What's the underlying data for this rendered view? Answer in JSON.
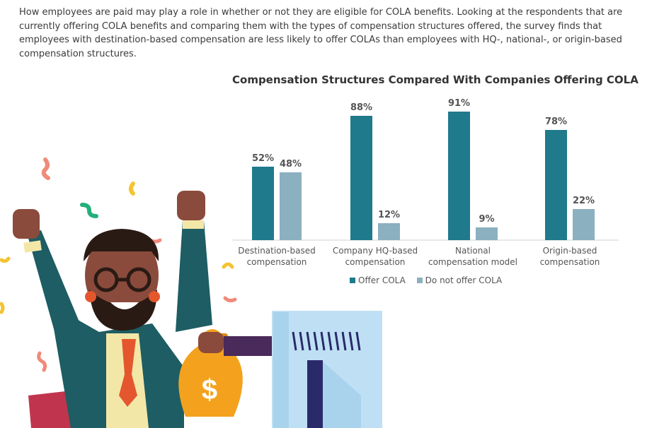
{
  "intro_text": "How employees are paid may play a role in whether or not they are eligible for COLA benefits. Looking at the respondents that are currently offering COLA benefits and comparing them with the types of compensation structures offered, the survey finds that employees with destination-based compensation are less likely to offer COLAs than employees with HQ-, national-, or origin-based compensation structures.",
  "chart_data": {
    "type": "bar",
    "title": "Compensation Structures Compared With Companies Offering COLA",
    "categories": [
      [
        "Destination-based",
        "compensation"
      ],
      [
        "Company HQ-based",
        "compensation"
      ],
      [
        "National",
        "compensation model"
      ],
      [
        "Origin-based",
        "compensation"
      ]
    ],
    "series": [
      {
        "name": "Offer COLA",
        "values": [
          52,
          88,
          91,
          78
        ],
        "labels": [
          "52%",
          "88%",
          "91%",
          "78%"
        ],
        "color": "#1f7a8c"
      },
      {
        "name": "Do not offer COLA",
        "values": [
          48,
          12,
          9,
          22
        ],
        "labels": [
          "48%",
          "12%",
          "9%",
          "22%"
        ],
        "color": "#8bb0c0"
      }
    ],
    "ylim": [
      0,
      100
    ],
    "legend_position": "bottom",
    "grid": false
  },
  "colors": {
    "offer": "#1f7a8c",
    "do_not_offer": "#8bb0c0",
    "suit": "#1d5d63",
    "monitor": "#bfe0f4",
    "money_bag": "#f4a21d"
  },
  "illustration": {
    "money_symbol": "$"
  }
}
